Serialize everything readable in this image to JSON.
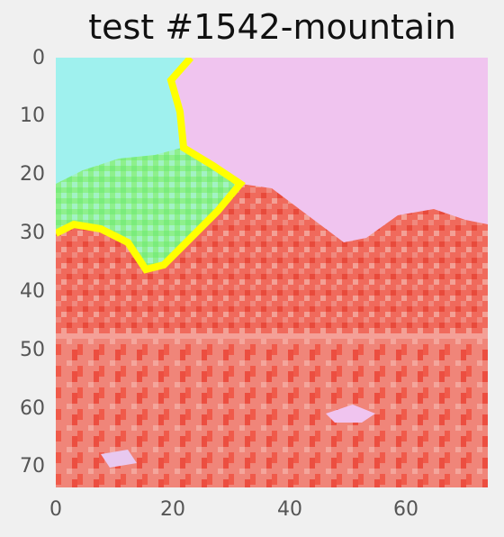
{
  "title": "test #1542-mountain",
  "image_extent": {
    "x": [
      0,
      74
    ],
    "y": [
      0,
      74
    ]
  },
  "y_ticks": [
    "0",
    "10",
    "20",
    "30",
    "40",
    "50",
    "60",
    "70"
  ],
  "x_ticks": [
    "0",
    "20",
    "40",
    "60"
  ],
  "regions": [
    {
      "name": "sky-left",
      "color": "#9ff1ee"
    },
    {
      "name": "sky-right",
      "color": "#f0c4ef"
    },
    {
      "name": "trees-green",
      "color": "#88f08a"
    },
    {
      "name": "mountain-red",
      "color": "#f0584c"
    },
    {
      "name": "water-red",
      "color": "#f07b6e"
    },
    {
      "name": "boundary",
      "color": "#ffff00"
    }
  ]
}
